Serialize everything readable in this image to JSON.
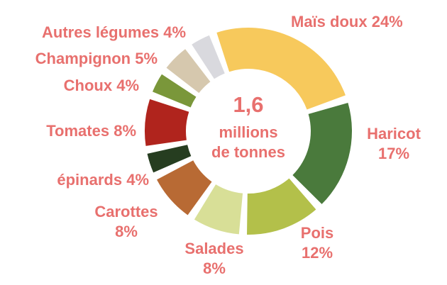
{
  "chart_data": {
    "type": "donut",
    "center_text": [
      "1,6",
      "millions",
      "de tonnes"
    ],
    "categories": [
      "Maïs doux",
      "Haricot",
      "Pois",
      "Salades",
      "Carottes",
      "épinards",
      "Tomates",
      "Choux",
      "Champignon",
      "Autres légumes"
    ],
    "values": [
      24,
      17,
      12,
      8,
      8,
      4,
      8,
      4,
      5,
      4
    ],
    "value_labels": [
      "24%",
      "17%",
      "12%",
      "8%",
      "8%",
      "4%",
      "8%",
      "4%",
      "5%",
      "4%"
    ],
    "colors": [
      "#f7c95c",
      "#4a7a3c",
      "#b3c04a",
      "#d8df97",
      "#b86a34",
      "#263d20",
      "#b0241d",
      "#7a973a",
      "#d6c8ae",
      "#d9d9de"
    ]
  }
}
